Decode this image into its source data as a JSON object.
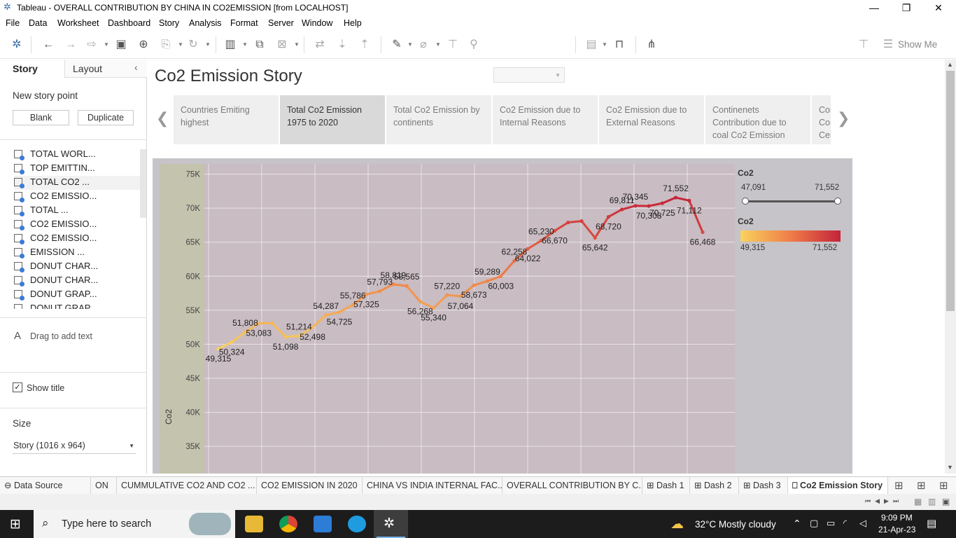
{
  "window": {
    "title": "Tableau - OVERALL CONTRIBUTION BY CHINA IN CO2EMISSION [from LOCALHOST]",
    "minimize": "—",
    "restore": "❐",
    "close": "✕"
  },
  "menu": [
    "File",
    "Data",
    "Worksheet",
    "Dashboard",
    "Story",
    "Analysis",
    "Format",
    "Server",
    "Window",
    "Help"
  ],
  "toolbar": {
    "show_me": "Show Me"
  },
  "left_pane": {
    "tab_story": "Story",
    "tab_layout": "Layout",
    "collapse": "‹",
    "new_story_point": "New story point",
    "blank": "Blank",
    "duplicate": "Duplicate",
    "sheets": [
      "TOTAL WORL...",
      "TOP EMITTIN...",
      "TOTAL CO2 ...",
      "CO2 EMISSIO...",
      "TOTAL ...",
      "CO2 EMISSIO...",
      "CO2 EMISSIO...",
      "EMISSION ...",
      "DONUT CHAR...",
      "DONUT CHAR...",
      "DONUT GRAP...",
      "DONUT GRAP"
    ],
    "drag_text_icon": "A",
    "drag_text": "Drag to add text",
    "show_title": "Show title",
    "size_label": "Size",
    "size_value": "Story (1016 x 964)"
  },
  "story": {
    "title": "Co2 Emission Story",
    "points": [
      "Countries Emiting highest",
      "Total Co2 Emission 1975 to 2020",
      "Total Co2 Emission by continents",
      "Co2 Emission due to Internal Reasons",
      "Co2 Emission due to External Reasons",
      "Continenets Contribution due to coal Co2 Emission",
      "Cor Cor Cer"
    ],
    "prev": "❮",
    "next": "❯"
  },
  "legend": {
    "filter_title": "Co2",
    "filter_min": "47,091",
    "filter_max": "71,552",
    "color_title": "Co2",
    "color_min": "49,315",
    "color_max": "71,552",
    "color_low": "#f9d25e",
    "color_high": "#c4233a"
  },
  "chart_data": {
    "type": "line",
    "ylabel": "Co2",
    "y_ticks": [
      "75K",
      "70K",
      "65K",
      "60K",
      "55K",
      "50K",
      "45K",
      "40K",
      "35K"
    ],
    "ylim": [
      31000,
      76500
    ],
    "values": [
      49315,
      50324,
      51808,
      53083,
      53100,
      51098,
      51214,
      52498,
      54287,
      54725,
      55786,
      57325,
      57793,
      58819,
      58565,
      56268,
      55340,
      57220,
      57064,
      58673,
      59289,
      60003,
      62258,
      64022,
      65230,
      66670,
      67900,
      68100,
      65642,
      68720,
      69811,
      70345,
      70308,
      70725,
      71552,
      71112,
      66468
    ],
    "labels": [
      "49,315",
      "50,324",
      "51,808",
      "53,083",
      "",
      "51,098",
      "51,214",
      "52,498",
      "54,287",
      "54,725",
      "55,786",
      "57,325",
      "57,793",
      "58,819",
      "58,565",
      "56,268",
      "55,340",
      "57,220",
      "57,064",
      "58,673",
      "59,289",
      "60,003",
      "62,258",
      "64,022",
      "65,230",
      "66,670",
      "",
      "",
      "65,642",
      "68,720",
      "69,811",
      "70,345",
      "70,308",
      "70,725",
      "71,552",
      "71,112",
      "66,468"
    ],
    "grid": true
  },
  "sheet_tabs": [
    "Data Source",
    "ON",
    "CUMMULATIVE CO2 AND CO2 ...",
    "CO2 EMISSION IN 2020",
    "CHINA VS INDIA INTERNAL FAC...",
    "OVERALL CONTRIBUTION BY C...",
    "Dash 1",
    "Dash 2",
    "Dash 3",
    "Co2 Emission Story"
  ],
  "taskbar": {
    "search": "Type here to search",
    "weather": "32°C  Mostly cloudy",
    "time": "9:09 PM",
    "date": "21-Apr-23"
  }
}
